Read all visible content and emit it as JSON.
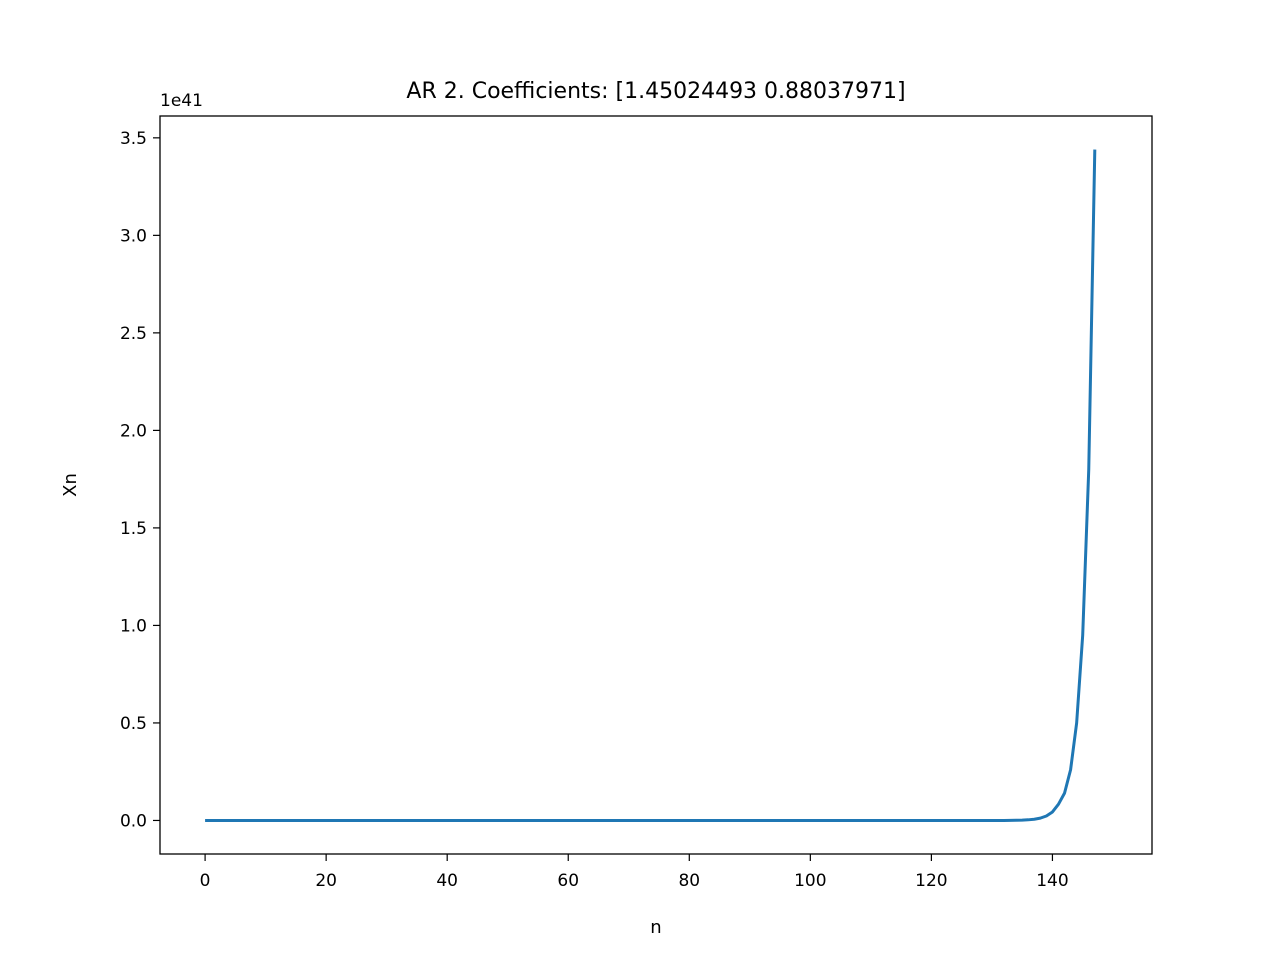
{
  "chart_data": {
    "type": "line",
    "title": "AR 2. Coefficients: [1.45024493 0.88037971]",
    "xlabel": "n",
    "ylabel": "Xn",
    "y_offset_label": "1e41",
    "xlim": [
      -7.45,
      156.45
    ],
    "ylim": [
      -0.172,
      3.612
    ],
    "x_ticks": [
      0,
      20,
      40,
      60,
      80,
      100,
      120,
      140
    ],
    "x_tick_labels": [
      "0",
      "20",
      "40",
      "60",
      "80",
      "100",
      "120",
      "140"
    ],
    "y_ticks": [
      0.0,
      0.5,
      1.0,
      1.5,
      2.0,
      2.5,
      3.0,
      3.5
    ],
    "y_tick_labels": [
      "0.0",
      "0.5",
      "1.0",
      "1.5",
      "2.0",
      "2.5",
      "3.0",
      "3.5"
    ],
    "grid": false,
    "legend": "none",
    "series_color": "#1f77b4",
    "x_start": 0,
    "values": [
      0,
      0,
      0,
      0,
      0,
      0,
      0,
      0,
      0,
      0,
      0,
      0,
      0,
      0,
      0,
      0,
      0,
      0,
      0,
      0,
      0,
      0,
      0,
      0,
      0,
      0,
      0,
      0,
      0,
      0,
      0,
      0,
      0,
      0,
      0,
      0,
      0,
      0,
      0,
      0,
      0,
      0,
      0,
      0,
      0,
      0,
      0,
      0,
      0,
      0,
      0,
      0,
      0,
      0,
      0,
      0,
      0,
      0,
      0,
      0,
      0,
      0,
      0,
      0,
      0,
      0,
      0,
      0,
      0,
      0,
      0,
      0,
      0,
      0,
      0,
      0,
      0,
      0,
      0,
      0,
      0,
      0,
      0,
      0,
      0,
      0,
      0,
      0,
      0,
      0,
      0,
      0,
      0,
      0,
      0,
      0,
      0,
      0,
      0,
      0,
      0,
      0,
      0,
      0,
      0,
      0,
      0,
      0,
      0,
      0,
      0,
      0,
      0,
      0,
      0,
      0,
      0,
      0,
      0,
      0,
      0,
      0,
      0,
      0,
      0,
      0,
      0,
      0,
      0,
      0,
      0,
      0,
      0,
      0.0005,
      0.0009,
      0.0017,
      0.0033,
      0.0063,
      0.012,
      0.0229,
      0.0436,
      0.0833,
      0.14,
      0.26,
      0.5,
      0.95,
      1.8,
      3.44
    ]
  }
}
